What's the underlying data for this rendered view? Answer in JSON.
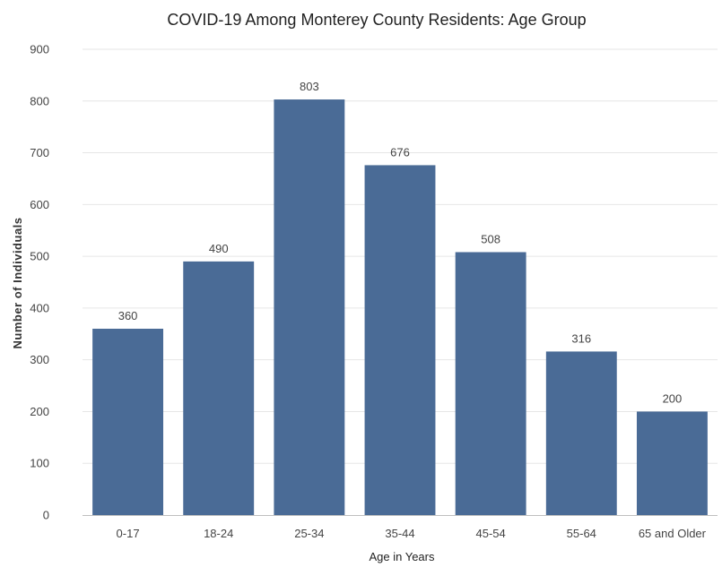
{
  "chart_data": {
    "type": "bar",
    "title": "COVID-19 Among Monterey County Residents: Age Group",
    "xlabel": "Age in Years",
    "ylabel": "Number of Individuals",
    "categories": [
      "0-17",
      "18-24",
      "25-34",
      "35-44",
      "45-54",
      "55-64",
      "65 and Older"
    ],
    "values": [
      360,
      490,
      803,
      676,
      508,
      316,
      200
    ],
    "ylim": [
      0,
      900
    ],
    "yticks": [
      0,
      100,
      200,
      300,
      400,
      500,
      600,
      700,
      800,
      900
    ],
    "grid": true,
    "legend": "none",
    "bar_color": "#4a6b96"
  }
}
